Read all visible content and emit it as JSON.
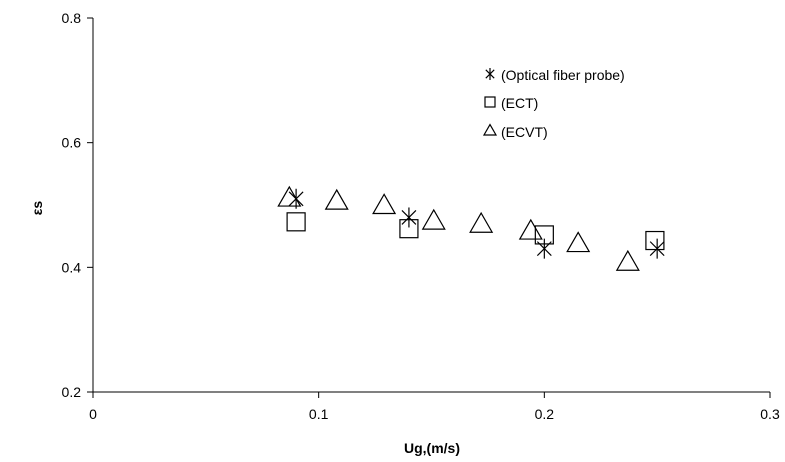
{
  "chart_data": {
    "type": "scatter",
    "xlabel": "Ug,(m/s)",
    "ylabel": "εs",
    "xlim": [
      0,
      0.3
    ],
    "ylim": [
      0.2,
      0.8
    ],
    "x_ticks": [
      0,
      0.1,
      0.2,
      0.3
    ],
    "x_tick_labels": [
      "0",
      "0.1",
      "0.2",
      "0.3"
    ],
    "y_ticks": [
      0.2,
      0.4,
      0.6,
      0.8
    ],
    "y_tick_labels": [
      "0.2",
      "0.4",
      "0.6",
      "0.8"
    ],
    "grid": false,
    "legend_position": "top-right",
    "series": [
      {
        "name": "(Optical fiber probe)",
        "marker": "star",
        "x": [
          0.09,
          0.14,
          0.2,
          0.25
        ],
        "y": [
          0.51,
          0.48,
          0.43,
          0.43
        ]
      },
      {
        "name": "(ECT)",
        "marker": "square",
        "x": [
          0.09,
          0.14,
          0.2,
          0.249
        ],
        "y": [
          0.473,
          0.462,
          0.452,
          0.443
        ]
      },
      {
        "name": "(ECVT)",
        "marker": "triangle",
        "x": [
          0.087,
          0.108,
          0.129,
          0.151,
          0.172,
          0.194,
          0.215,
          0.237
        ],
        "y": [
          0.51,
          0.505,
          0.498,
          0.473,
          0.468,
          0.457,
          0.437,
          0.407
        ]
      }
    ]
  }
}
